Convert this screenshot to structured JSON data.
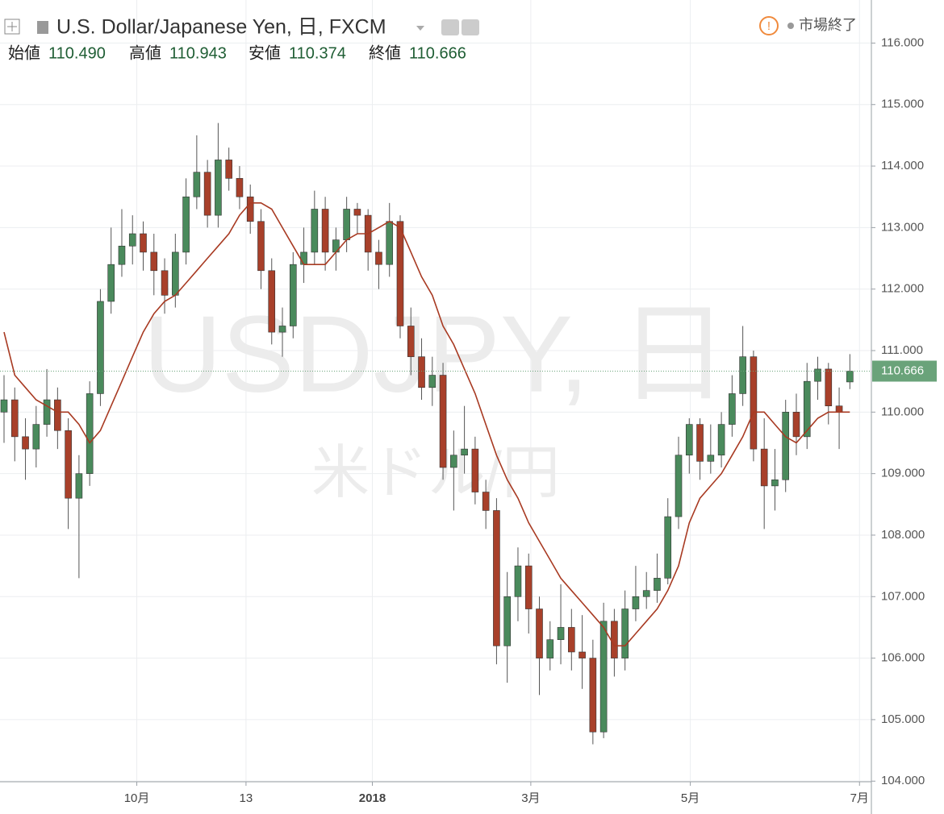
{
  "chart_data": {
    "type": "candlestick",
    "title": "U.S. Dollar/Japanese Yen, 日, FXCM",
    "ohlc_labels": [
      {
        "label": "始値",
        "value": "110.490"
      },
      {
        "label": "高値",
        "value": "110.943"
      },
      {
        "label": "安値",
        "value": "110.374"
      },
      {
        "label": "終値",
        "value": "110.666"
      }
    ],
    "status": "市場終了",
    "watermark": "USDJPY, 日",
    "watermark_sub": "米ドル/円",
    "open": [
      110.0,
      110.2,
      109.6,
      109.4,
      109.8,
      110.2,
      109.7,
      108.6,
      109.0,
      110.3,
      111.8,
      112.4,
      112.7,
      112.9,
      112.6,
      112.3,
      111.9,
      112.6,
      113.5,
      113.9,
      113.2,
      114.1,
      113.8,
      113.5,
      113.1,
      112.3,
      111.3,
      111.4,
      112.4,
      112.6,
      113.3,
      112.6,
      112.8,
      113.3,
      113.2,
      112.6,
      112.4,
      113.1,
      111.4,
      110.9,
      110.4,
      110.6,
      109.1,
      109.3,
      109.4,
      108.7,
      108.4,
      106.2,
      107.0,
      107.5,
      106.8,
      106.0,
      106.3,
      106.5,
      106.1,
      106.0,
      104.8,
      106.6,
      106.0,
      106.8,
      107.0,
      107.1,
      107.3,
      108.3,
      109.3,
      109.8,
      109.2,
      109.3,
      109.8,
      110.3,
      110.9,
      109.4,
      108.8,
      108.9,
      110.0,
      109.6,
      110.5,
      110.7,
      110.1,
      110.49
    ],
    "high": [
      110.6,
      110.4,
      109.9,
      110.1,
      110.7,
      110.4,
      109.9,
      109.3,
      110.5,
      112.0,
      113.0,
      113.3,
      113.2,
      113.1,
      112.9,
      112.5,
      112.9,
      113.8,
      114.5,
      114.1,
      114.7,
      114.3,
      114.0,
      113.7,
      113.3,
      112.5,
      111.7,
      112.6,
      113.0,
      113.6,
      113.5,
      113.0,
      113.5,
      113.4,
      113.3,
      112.8,
      113.4,
      113.2,
      111.7,
      111.2,
      110.9,
      110.8,
      109.7,
      110.1,
      109.6,
      108.9,
      108.6,
      107.4,
      107.8,
      107.7,
      107.0,
      106.6,
      107.2,
      106.8,
      106.7,
      106.3,
      106.9,
      106.8,
      107.1,
      107.5,
      107.4,
      107.7,
      108.6,
      109.6,
      109.9,
      109.9,
      109.8,
      110.0,
      110.6,
      111.4,
      111.0,
      109.9,
      109.4,
      110.2,
      110.3,
      110.8,
      110.9,
      110.8,
      110.4,
      110.943
    ],
    "low": [
      109.5,
      109.2,
      108.9,
      109.1,
      109.6,
      109.4,
      108.1,
      107.3,
      108.8,
      110.1,
      111.6,
      112.2,
      112.4,
      112.3,
      111.9,
      111.6,
      111.7,
      112.4,
      113.3,
      113.0,
      113.0,
      113.6,
      113.3,
      112.9,
      112.0,
      111.1,
      110.9,
      111.2,
      112.1,
      112.4,
      112.3,
      112.3,
      112.6,
      112.9,
      112.3,
      112.0,
      112.2,
      111.2,
      110.6,
      110.2,
      110.1,
      108.9,
      108.4,
      109.0,
      108.5,
      108.1,
      105.9,
      105.6,
      106.6,
      106.4,
      105.4,
      105.8,
      105.9,
      105.8,
      105.5,
      104.6,
      104.7,
      105.7,
      105.8,
      106.6,
      106.8,
      106.9,
      107.2,
      108.1,
      109.0,
      108.9,
      109.0,
      109.1,
      109.6,
      110.1,
      109.2,
      108.1,
      108.4,
      108.7,
      109.3,
      109.4,
      110.2,
      109.8,
      109.4,
      110.374
    ],
    "close": [
      110.2,
      109.6,
      109.4,
      109.8,
      110.2,
      109.7,
      108.6,
      109.0,
      110.3,
      111.8,
      112.4,
      112.7,
      112.9,
      112.6,
      112.3,
      111.9,
      112.6,
      113.5,
      113.9,
      113.2,
      114.1,
      113.8,
      113.5,
      113.1,
      112.3,
      111.3,
      111.4,
      112.4,
      112.6,
      113.3,
      112.6,
      112.8,
      113.3,
      113.2,
      112.6,
      112.4,
      113.1,
      111.4,
      110.9,
      110.4,
      110.6,
      109.1,
      109.3,
      109.4,
      108.7,
      108.4,
      106.2,
      107.0,
      107.5,
      106.8,
      106.0,
      106.3,
      106.5,
      106.1,
      106.0,
      104.8,
      106.6,
      106.0,
      106.8,
      107.0,
      107.1,
      107.3,
      108.3,
      109.3,
      109.8,
      109.2,
      109.3,
      109.8,
      110.3,
      110.9,
      109.4,
      108.8,
      108.9,
      110.0,
      109.6,
      110.5,
      110.7,
      110.1,
      110.0,
      110.666
    ],
    "up_color": "#4a8a5c",
    "down_color": "#a8402a",
    "last_price_color": "#6aa37a",
    "ma": {
      "color": "#a83a22",
      "values": [
        111.3,
        110.6,
        110.4,
        110.2,
        110.1,
        110.0,
        110.0,
        109.8,
        109.5,
        109.7,
        110.1,
        110.5,
        110.9,
        111.3,
        111.6,
        111.8,
        111.9,
        112.1,
        112.3,
        112.5,
        112.7,
        112.9,
        113.2,
        113.4,
        113.4,
        113.3,
        113.0,
        112.7,
        112.4,
        112.4,
        112.4,
        112.6,
        112.8,
        112.9,
        112.9,
        113.0,
        113.1,
        113.0,
        112.6,
        112.2,
        111.9,
        111.4,
        111.1,
        110.7,
        110.3,
        109.8,
        109.3,
        108.9,
        108.6,
        108.2,
        107.9,
        107.6,
        107.3,
        107.1,
        106.9,
        106.7,
        106.5,
        106.2,
        106.2,
        106.4,
        106.6,
        106.8,
        107.1,
        107.5,
        108.2,
        108.6,
        108.8,
        109.0,
        109.3,
        109.6,
        110.0,
        110.0,
        109.8,
        109.6,
        109.5,
        109.7,
        109.9,
        110.0,
        110.0,
        110.0
      ]
    },
    "ylim": [
      103.99,
      116.7
    ],
    "yticks": [
      {
        "value": 104,
        "label": "104.000"
      },
      {
        "value": 105,
        "label": "105.000"
      },
      {
        "value": 106,
        "label": "106.000"
      },
      {
        "value": 107,
        "label": "107.000"
      },
      {
        "value": 108,
        "label": "108.000"
      },
      {
        "value": 109,
        "label": "109.000"
      },
      {
        "value": 110,
        "label": "110.000"
      },
      {
        "value": 111,
        "label": "111.000"
      },
      {
        "value": 112,
        "label": "112.000"
      },
      {
        "value": 113,
        "label": "113.000"
      },
      {
        "value": 114,
        "label": "114.000"
      },
      {
        "value": 115,
        "label": "115.000"
      },
      {
        "value": 116,
        "label": "116.000"
      }
    ],
    "xticks": [
      {
        "value": 12.4,
        "label": "10月"
      },
      {
        "value": 22.6,
        "label": "13"
      },
      {
        "value": 34.4,
        "label": "2018"
      },
      {
        "value": 49.2,
        "label": "3月"
      },
      {
        "value": 64.1,
        "label": "5月"
      },
      {
        "value": 79.9,
        "label": "7月"
      }
    ],
    "grid": true
  }
}
